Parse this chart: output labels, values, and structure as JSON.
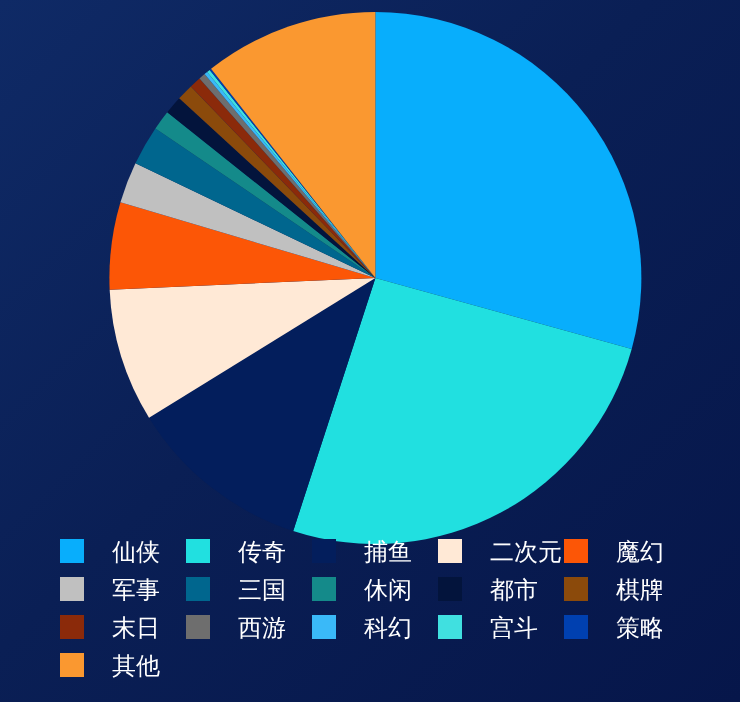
{
  "chart_data": {
    "type": "pie",
    "legend": "bottom",
    "categories": [
      "仙侠",
      "传奇",
      "捕鱼",
      "二次元",
      "魔幻",
      "军事",
      "三国",
      "休闲",
      "都市",
      "棋牌",
      "末日",
      "西游",
      "科幻",
      "宫斗",
      "策略",
      "其他"
    ],
    "values": [
      29.3,
      25.7,
      11.2,
      8.1,
      5.3,
      2.5,
      2.4,
      1.2,
      1.1,
      1.0,
      0.7,
      0.4,
      0.2,
      0.2,
      0.1,
      10.6
    ],
    "colors": [
      "#08aefc",
      "#21e0e0",
      "#031e5c",
      "#ffe9d6",
      "#fc5606",
      "#c0c0c0",
      "#00668e",
      "#148a8a",
      "#03143c",
      "#8b4a0b",
      "#8b2a0a",
      "#6e6e6e",
      "#3ab9f8",
      "#40e0e0",
      "#0040b0",
      "#fa9830"
    ]
  }
}
